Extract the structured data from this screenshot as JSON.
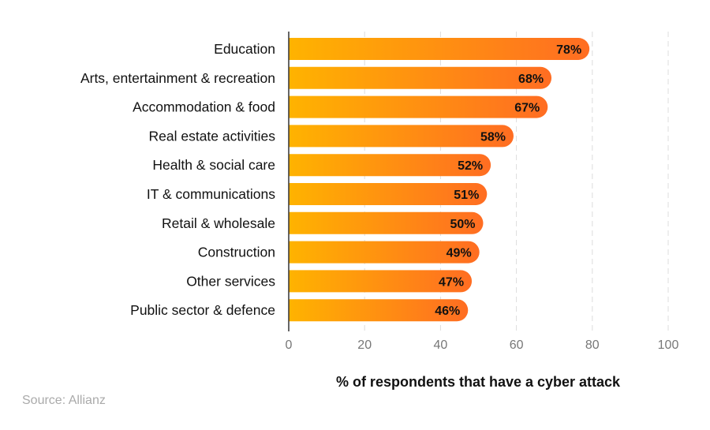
{
  "chart_data": {
    "type": "bar",
    "orientation": "horizontal",
    "categories": [
      "Education",
      "Arts, entertainment & recreation",
      "Accommodation & food",
      "Real estate activities",
      "Health & social care",
      "IT & communications",
      "Retail & wholesale",
      "Construction",
      "Other services",
      "Public sector & defence"
    ],
    "values": [
      78,
      68,
      67,
      58,
      52,
      51,
      50,
      49,
      47,
      46
    ],
    "value_labels": [
      "78%",
      "68%",
      "67%",
      "58%",
      "52%",
      "51%",
      "50%",
      "49%",
      "47%",
      "46%"
    ],
    "xlabel": "% of respondents that have a cyber attack",
    "xlim": [
      0,
      100
    ],
    "xticks": [
      "0",
      "20",
      "40",
      "60",
      "80",
      "100"
    ],
    "grid": "vertical dashed",
    "colors": {
      "gradient_start": "#FFB300",
      "gradient_end": "#FF6D22"
    }
  },
  "source": "Source: Allianz"
}
